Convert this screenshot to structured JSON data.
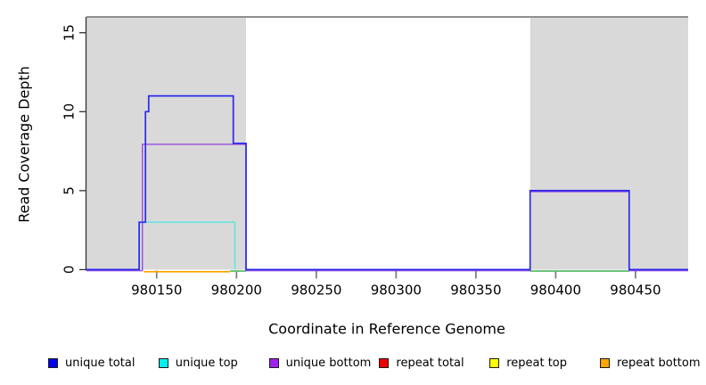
{
  "figure": {
    "xlabel": "Coordinate in Reference Genome",
    "ylabel": "Read Coverage Depth"
  },
  "chart_data": {
    "type": "line",
    "title": "",
    "xlabel": "Coordinate in Reference Genome",
    "ylabel": "Read Coverage Depth",
    "xlim": [
      980106,
      980483
    ],
    "ylim": [
      0,
      16
    ],
    "x_ticks": [
      980150,
      980200,
      980250,
      980300,
      980350,
      980400,
      980450
    ],
    "y_ticks": [
      0,
      5,
      10,
      15
    ],
    "grid": false,
    "background_color": "#ffffff",
    "shaded_regions": [
      {
        "x0": 980106,
        "x1": 980206,
        "color": "#d9d9d9"
      },
      {
        "x0": 980384,
        "x1": 980483,
        "color": "#d9d9d9"
      }
    ],
    "top_boundary_line": {
      "y": 16,
      "color": "#8f8f8f"
    },
    "series": [
      {
        "name": "green baseline segment left",
        "color": "#5cbb6a",
        "width": 1.8,
        "dy": 1.6,
        "points": [
          [
            980196,
            0
          ],
          [
            980206,
            0
          ]
        ]
      },
      {
        "name": "green baseline segment right",
        "color": "#5cbb6a",
        "width": 1.8,
        "dy": 1.6,
        "points": [
          [
            980384,
            0
          ],
          [
            980446,
            0
          ]
        ]
      },
      {
        "name": "repeat bottom",
        "color": "#ffa500",
        "width": 1.8,
        "dy": 2.4,
        "points": [
          [
            980142,
            0
          ],
          [
            980196,
            0
          ]
        ]
      },
      {
        "name": "unique top",
        "color": "#63e5dc",
        "width": 1.6,
        "dy": 0,
        "points": [
          [
            980139,
            0
          ],
          [
            980139,
            3
          ],
          [
            980199,
            3
          ],
          [
            980199,
            0
          ]
        ]
      },
      {
        "name": "unique bottom",
        "color": "#9b4be0",
        "width": 1.4,
        "dy": 1.2,
        "points": [
          [
            980106,
            0
          ],
          [
            980141,
            0
          ],
          [
            980141,
            8
          ],
          [
            980206,
            8
          ],
          [
            980206,
            0
          ],
          [
            980384,
            0
          ],
          [
            980384,
            5
          ],
          [
            980446,
            5
          ],
          [
            980446,
            0
          ],
          [
            980483,
            0
          ]
        ]
      },
      {
        "name": "unique total",
        "color": "#2a2aee",
        "width": 1.7,
        "dy": 0,
        "points": [
          [
            980106,
            0
          ],
          [
            980139,
            0
          ],
          [
            980139,
            3
          ],
          [
            980143,
            3
          ],
          [
            980143,
            10
          ],
          [
            980145,
            10
          ],
          [
            980145,
            11
          ],
          [
            980198,
            11
          ],
          [
            980198,
            8
          ],
          [
            980206,
            8
          ],
          [
            980206,
            0
          ],
          [
            980384,
            0
          ],
          [
            980384,
            5
          ],
          [
            980446,
            5
          ],
          [
            980446,
            0
          ],
          [
            980483,
            0
          ]
        ]
      }
    ],
    "legend": {
      "position": "bottom",
      "entries": [
        {
          "label": "unique total",
          "color": "#0000ee"
        },
        {
          "label": "unique top",
          "color": "#00eeee"
        },
        {
          "label": "unique bottom",
          "color": "#a020f0"
        },
        {
          "label": "repeat total",
          "color": "#ee0000"
        },
        {
          "label": "repeat top",
          "color": "#ffff00"
        },
        {
          "label": "repeat bottom",
          "color": "#ffa500"
        }
      ]
    }
  }
}
